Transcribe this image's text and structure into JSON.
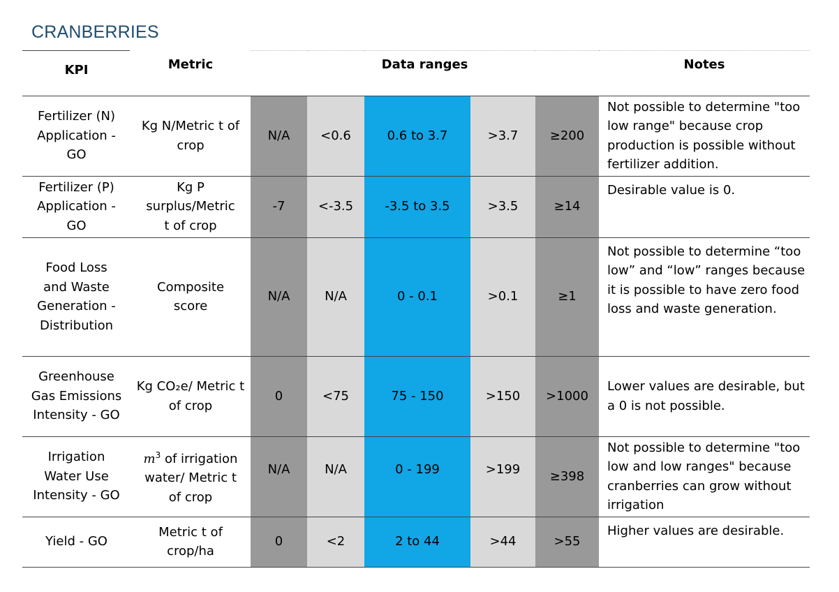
{
  "page_title": "CRANBERRIES",
  "headers": {
    "kpi": "KPI",
    "metric": "Metric",
    "data_ranges": "Data ranges",
    "notes": "Notes"
  },
  "colors": {
    "dark_grey": "#999999",
    "light_grey": "#d9d9d9",
    "blue": "#11a6e6",
    "title": "#1f4e6e"
  },
  "rows": [
    {
      "kpi": "Fertilizer (N) Application - GO",
      "metric": "Kg N/Metric t of crop",
      "ranges": [
        "N/A",
        "<0.6",
        "0.6 to 3.7",
        ">3.7",
        "≥200"
      ],
      "notes": "Not possible to determine \"too low range\" because crop production is possible without fertilizer addition."
    },
    {
      "kpi": "Fertilizer (P) Application - GO",
      "metric": "Kg P surplus/Metric t of crop",
      "ranges": [
        "-7",
        "<-3.5",
        "-3.5 to 3.5",
        ">3.5",
        "≥14"
      ],
      "notes": "Desirable value is 0."
    },
    {
      "kpi": "Food Loss and Waste Generation - Distribution",
      "metric": "Composite score",
      "ranges": [
        "N/A",
        "N/A",
        "0 - 0.1",
        ">0.1",
        "≥1"
      ],
      "notes": "Not possible to determine “too low” and “low” ranges because it is possible to have zero food loss and waste generation."
    },
    {
      "kpi": "Greenhouse Gas Emissions Intensity - GO",
      "metric": "Kg CO₂e/ Metric t of crop",
      "ranges": [
        "0",
        "<75",
        "75 - 150",
        ">150",
        ">1000"
      ],
      "notes": "Lower values are desirable, but a 0 is not possible."
    },
    {
      "kpi": "Irrigation Water Use Intensity - GO",
      "metric_symbol": "m",
      "metric_exponent": "3",
      "metric_rest": " of irrigation water/ Metric t of crop",
      "ranges": [
        "N/A",
        "N/A",
        "0 - 199",
        ">199",
        "≥398"
      ],
      "notes": "Not possible to determine \"too low and low ranges\" because cranberries can grow without irrigation"
    },
    {
      "kpi": "Yield - GO",
      "metric": "Metric t of crop/ha",
      "ranges": [
        "0",
        "<2",
        "2 to 44",
        ">44",
        ">55"
      ],
      "notes": "Higher values are desirable."
    }
  ]
}
